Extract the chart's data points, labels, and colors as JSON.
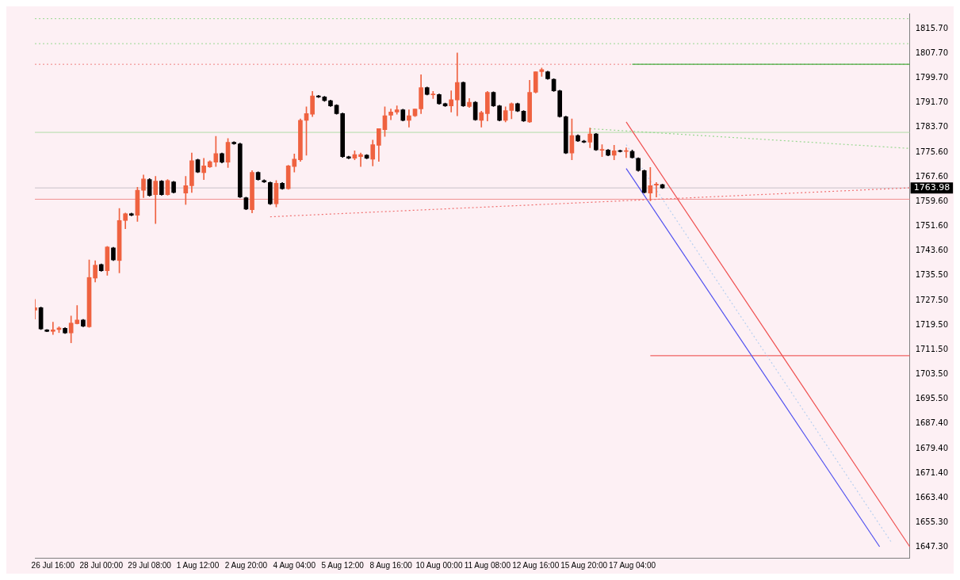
{
  "chart_data": {
    "type": "candlestick",
    "categories": [
      null,
      null,
      null,
      "26 Jul 16:00",
      null,
      null,
      null,
      null,
      null,
      null,
      null,
      "28 Jul 00:00",
      null,
      null,
      null,
      null,
      null,
      null,
      null,
      "29 Jul 08:00",
      null,
      null,
      null,
      null,
      null,
      null,
      null,
      "1 Aug 12:00",
      null,
      null,
      null,
      null,
      null,
      null,
      null,
      "2 Aug 20:00",
      null,
      null,
      null,
      null,
      null,
      null,
      null,
      "4 Aug 04:00",
      null,
      null,
      null,
      null,
      null,
      null,
      null,
      "5 Aug 12:00",
      null,
      null,
      null,
      null,
      null,
      null,
      null,
      "8 Aug 16:00",
      null,
      null,
      null,
      null,
      null,
      null,
      null,
      "10 Aug 00:00",
      null,
      null,
      null,
      null,
      null,
      null,
      null,
      "11 Aug 08:00",
      null,
      null,
      null,
      null,
      null,
      null,
      null,
      "12 Aug 16:00",
      null,
      null,
      null,
      null,
      null,
      null,
      null,
      "15 Aug 20:00",
      null,
      null,
      null,
      null,
      null,
      null,
      null,
      "17 Aug 04:00",
      null,
      null,
      null,
      null,
      null,
      null,
      null,
      null,
      null,
      null,
      null,
      null,
      null,
      null,
      null,
      null,
      null,
      null,
      null,
      null,
      null,
      null,
      null,
      null,
      null,
      null,
      null,
      null,
      null,
      null,
      null,
      null,
      null,
      null,
      null,
      null,
      null,
      null,
      null,
      null,
      null,
      null,
      null,
      null,
      null,
      null
    ],
    "ohlc": [
      [
        1724.3,
        1727.8,
        1721.4,
        1725.1
      ],
      [
        1725.1,
        1725.3,
        1718.0,
        1718.2
      ],
      [
        1717.9,
        1718.0,
        1717.3,
        1717.4
      ],
      [
        1717.4,
        1720.4,
        1716.4,
        1717.9
      ],
      [
        1718.0,
        1718.9,
        1717.0,
        1718.5
      ],
      [
        1718.4,
        1718.6,
        1716.7,
        1716.9
      ],
      [
        1716.9,
        1722.4,
        1713.7,
        1720.1
      ],
      [
        1719.9,
        1725.8,
        1719.8,
        1721.1
      ],
      [
        1721.1,
        1721.3,
        1718.9,
        1719.1
      ],
      [
        1718.9,
        1740.6,
        1718.7,
        1734.9
      ],
      [
        1734.7,
        1740.3,
        1733.4,
        1738.9
      ],
      [
        1739.1,
        1739.3,
        1736.9,
        1737.1
      ],
      [
        1737.1,
        1745.0,
        1735.6,
        1744.8
      ],
      [
        1744.5,
        1744.7,
        1740.4,
        1740.6
      ],
      [
        1740.4,
        1757.3,
        1736.4,
        1753.4
      ],
      [
        1753.4,
        1755.8,
        1750.7,
        1755.6
      ],
      [
        1755.6,
        1755.8,
        1754.9,
        1755.1
      ],
      [
        1755.1,
        1764.2,
        1753.1,
        1763.2
      ],
      [
        1763.2,
        1768.2,
        1760.8,
        1766.9
      ],
      [
        1766.7,
        1767.0,
        1761.3,
        1761.5
      ],
      [
        1761.8,
        1767.7,
        1752.4,
        1766.2
      ],
      [
        1766.2,
        1766.4,
        1761.6,
        1761.8
      ],
      [
        1761.8,
        1766.7,
        1761.6,
        1766.4
      ],
      [
        1765.9,
        1766.1,
        1762.3,
        1762.5
      ],
      null,
      [
        1762.3,
        1767.7,
        1758.6,
        1764.7
      ],
      [
        1764.7,
        1775.3,
        1762.5,
        1772.8
      ],
      [
        1773.1,
        1773.3,
        1768.9,
        1769.1
      ],
      [
        1768.9,
        1773.6,
        1766.7,
        1771.1
      ],
      [
        1770.8,
        1772.8,
        1770.6,
        1772.5
      ],
      [
        1772.3,
        1780.7,
        1770.9,
        1775.1
      ],
      [
        1775.1,
        1775.3,
        1772.1,
        1772.3
      ],
      [
        1772.3,
        1780.0,
        1770.6,
        1778.8
      ],
      [
        1778.8,
        1779.0,
        1778.1,
        1778.3
      ],
      [
        1778.3,
        1778.5,
        1760.8,
        1761.0
      ],
      [
        1760.8,
        1761.0,
        1756.9,
        1757.1
      ],
      [
        1756.9,
        1769.6,
        1755.9,
        1769.0
      ],
      [
        1769.0,
        1769.2,
        1766.5,
        1766.7
      ],
      [
        1766.4,
        1766.6,
        1765.7,
        1765.9
      ],
      [
        1765.7,
        1765.9,
        1758.6,
        1758.8
      ],
      [
        1758.8,
        1766.4,
        1757.8,
        1765.5
      ],
      [
        1765.5,
        1765.7,
        1763.5,
        1763.7
      ],
      [
        1763.7,
        1771.3,
        1763.5,
        1771.1
      ],
      [
        1770.9,
        1775.0,
        1769.1,
        1773.3
      ],
      [
        1773.1,
        1786.4,
        1772.6,
        1785.9
      ],
      [
        1785.9,
        1790.3,
        1774.6,
        1788.1
      ],
      [
        1787.9,
        1795.3,
        1787.1,
        1793.8
      ],
      [
        1793.8,
        1794.0,
        1793.3,
        1793.5
      ],
      [
        1793.5,
        1793.7,
        1792.1,
        1792.3
      ],
      [
        1792.3,
        1792.5,
        1790.4,
        1790.6
      ],
      [
        1790.8,
        1791.0,
        1787.9,
        1788.1
      ],
      [
        1788.1,
        1788.3,
        1773.9,
        1774.1
      ],
      [
        1774.1,
        1774.3,
        1773.4,
        1773.6
      ],
      [
        1773.6,
        1776.0,
        1773.1,
        1774.8
      ],
      [
        1774.1,
        1775.3,
        1770.9,
        1774.8
      ],
      [
        1774.6,
        1774.8,
        1773.4,
        1773.6
      ],
      [
        1773.3,
        1779.5,
        1771.1,
        1778.0
      ],
      [
        1777.8,
        1783.2,
        1772.6,
        1783.2
      ],
      [
        1782.9,
        1790.3,
        1780.7,
        1787.4
      ],
      [
        1787.6,
        1789.6,
        1786.1,
        1788.6
      ],
      [
        1788.6,
        1790.6,
        1787.9,
        1789.3
      ],
      [
        1789.3,
        1789.5,
        1785.7,
        1785.9
      ],
      [
        1785.9,
        1789.3,
        1783.7,
        1787.4
      ],
      [
        1787.4,
        1789.6,
        1787.1,
        1789.6
      ],
      [
        1789.6,
        1800.7,
        1788.1,
        1796.5
      ],
      [
        1796.5,
        1796.7,
        1794.1,
        1794.3
      ],
      [
        1794.2,
        1795.3,
        1793.0,
        1794.4
      ],
      [
        1794.3,
        1794.5,
        1791.1,
        1791.3
      ],
      [
        1791.3,
        1791.5,
        1790.4,
        1790.6
      ],
      [
        1790.6,
        1795.5,
        1788.6,
        1792.6
      ],
      [
        1792.5,
        1807.8,
        1787.4,
        1798.2
      ],
      [
        1798.2,
        1798.4,
        1790.4,
        1790.6
      ],
      [
        1790.4,
        1793.0,
        1790.1,
        1791.8
      ],
      [
        1791.8,
        1792.0,
        1785.9,
        1786.1
      ],
      [
        1785.9,
        1788.9,
        1783.7,
        1788.4
      ],
      [
        1788.1,
        1795.3,
        1785.7,
        1795.0
      ],
      [
        1795.0,
        1795.2,
        1790.4,
        1790.6
      ],
      [
        1790.6,
        1790.8,
        1785.7,
        1785.9
      ],
      [
        1785.9,
        1790.3,
        1785.4,
        1789.1
      ],
      [
        1789.1,
        1791.6,
        1786.4,
        1791.3
      ],
      [
        1791.3,
        1791.5,
        1788.7,
        1788.9
      ],
      [
        1788.9,
        1789.1,
        1785.5,
        1785.7
      ],
      [
        1785.4,
        1798.9,
        1785.2,
        1795.0
      ],
      [
        1795.0,
        1801.7,
        1794.8,
        1801.7
      ],
      [
        1801.7,
        1802.9,
        1800.2,
        1802.4
      ],
      [
        1801.7,
        1801.9,
        1799.2,
        1799.4
      ],
      [
        1799.2,
        1799.4,
        1795.3,
        1795.5
      ],
      [
        1795.5,
        1795.7,
        1786.9,
        1787.1
      ],
      [
        1787.1,
        1787.3,
        1775.1,
        1775.3
      ],
      [
        1775.3,
        1786.4,
        1773.1,
        1781.0
      ],
      [
        1781.0,
        1781.2,
        1779.0,
        1779.2
      ],
      [
        1779.2,
        1779.4,
        1778.6,
        1778.8
      ],
      [
        1778.8,
        1783.4,
        1777.0,
        1781.5
      ],
      [
        1781.5,
        1781.7,
        1776.1,
        1776.3
      ],
      [
        1776.2,
        1778.0,
        1774.1,
        1776.4
      ],
      [
        1776.3,
        1776.5,
        1774.4,
        1774.6
      ],
      [
        1774.6,
        1777.8,
        1773.1,
        1776.0
      ],
      [
        1776.1,
        1776.3,
        1775.6,
        1775.8
      ],
      [
        1775.8,
        1777.0,
        1773.8,
        1776.0
      ],
      [
        1775.8,
        1776.3,
        1773.6,
        1773.8
      ],
      [
        1773.6,
        1773.8,
        1769.4,
        1769.6
      ],
      [
        1769.6,
        1769.8,
        1762.3,
        1762.5
      ],
      [
        1762.3,
        1770.6,
        1759.8,
        1764.7
      ],
      [
        1764.9,
        1765.7,
        1761.0,
        1765.2
      ],
      [
        1765.0,
        1765.2,
        1763.8,
        1764.0
      ],
      null,
      null,
      null,
      null,
      null,
      null,
      null,
      null,
      null,
      null,
      null,
      null,
      null,
      null,
      null,
      null,
      null,
      null,
      null,
      null,
      null,
      null,
      null,
      null,
      null,
      null,
      null,
      null,
      null,
      null,
      null,
      null,
      null,
      null,
      null,
      null,
      null,
      null,
      null,
      null,
      null
    ],
    "colors": [
      "#ef6240",
      "#000000",
      "#000000",
      "#ef6240",
      "#ef6240",
      "#000000",
      "#ef6240",
      "#ef6240",
      "#000000",
      "#ef6240",
      "#ef6240",
      "#000000",
      "#ef6240",
      "#000000",
      "#ef6240",
      "#ef6240",
      "#000000",
      "#ef6240",
      "#ef6240",
      "#000000",
      "#ef6240",
      "#000000",
      "#ef6240",
      "#000000",
      null,
      "#ef6240",
      "#ef6240",
      "#000000",
      "#ef6240",
      "#ef6240",
      "#ef6240",
      "#000000",
      "#ef6240",
      "#000000",
      "#000000",
      "#000000",
      "#ef6240",
      "#000000",
      "#000000",
      "#000000",
      "#ef6240",
      "#000000",
      "#ef6240",
      "#ef6240",
      "#ef6240",
      "#ef6240",
      "#ef6240",
      "#000000",
      "#000000",
      "#000000",
      "#000000",
      "#000000",
      "#000000",
      "#ef6240",
      "#ef6240",
      "#000000",
      "#ef6240",
      "#ef6240",
      "#ef6240",
      "#ef6240",
      "#ef6240",
      "#000000",
      "#ef6240",
      "#ef6240",
      "#ef6240",
      "#000000",
      "#ef6240",
      "#000000",
      "#000000",
      "#ef6240",
      "#ef6240",
      "#000000",
      "#ef6240",
      "#000000",
      "#ef6240",
      "#ef6240",
      "#000000",
      "#000000",
      "#ef6240",
      "#ef6240",
      "#000000",
      "#000000",
      "#ef6240",
      "#ef6240",
      "#ef6240",
      "#000000",
      "#000000",
      "#000000",
      "#000000",
      "#ef6240",
      "#000000",
      "#000000",
      "#ef6240",
      "#000000",
      "#ef6240",
      "#000000",
      "#ef6240",
      "#000000",
      "#ef6240",
      "#000000",
      "#000000",
      "#000000",
      "#ef6240",
      "#ef6240",
      "#000000",
      null,
      null,
      null,
      null,
      null,
      null,
      null,
      null,
      null,
      null,
      null,
      null,
      null,
      null,
      null,
      null,
      null,
      null,
      null,
      null,
      null,
      null,
      null,
      null,
      null,
      null,
      null,
      null,
      null,
      null,
      null,
      null,
      null,
      null,
      null,
      null,
      null,
      null,
      null,
      null,
      null
    ],
    "series": [
      {
        "type": "line",
        "color": "#98d890",
        "line_style": "dotted",
        "values": [
          null,
          null,
          null,
          null,
          null,
          null,
          null,
          null,
          null,
          null,
          null,
          null,
          null,
          null,
          null,
          null,
          null,
          null,
          null,
          null,
          null,
          null,
          null,
          null,
          null,
          null,
          null,
          null,
          null,
          null,
          null,
          null,
          null,
          null,
          null,
          null,
          null,
          null,
          null,
          null,
          null,
          null,
          null,
          null,
          null,
          null,
          null,
          null,
          null,
          null,
          null,
          null,
          null,
          null,
          null,
          null,
          null,
          null,
          null,
          null,
          null,
          null,
          null,
          null,
          null,
          null,
          null,
          null,
          null,
          null,
          null,
          null,
          null,
          null,
          null,
          null,
          null,
          null,
          null,
          null,
          null,
          null,
          null,
          null,
          null,
          null,
          null,
          null,
          null,
          null,
          null,
          null,
          1783.2,
          null,
          null,
          null,
          null,
          null,
          null,
          null,
          null,
          null,
          null,
          null,
          null,
          null,
          null,
          null,
          null,
          null,
          null,
          null,
          null,
          null,
          null,
          null,
          null,
          null,
          null,
          null,
          null,
          null,
          null,
          null,
          null,
          null,
          null,
          null,
          null,
          null,
          null,
          null,
          null,
          null,
          null,
          null,
          null,
          null,
          null,
          null,
          null,
          null,
          null,
          null,
          null,
          1776.8
        ]
      },
      {
        "type": "line",
        "color": "#f07070",
        "line_style": "dotted",
        "values": [
          null,
          null,
          null,
          null,
          null,
          null,
          null,
          null,
          null,
          null,
          null,
          null,
          null,
          null,
          null,
          null,
          null,
          null,
          null,
          null,
          null,
          null,
          null,
          null,
          null,
          null,
          null,
          null,
          null,
          null,
          null,
          null,
          null,
          null,
          null,
          null,
          null,
          null,
          null,
          1754.6,
          null,
          null,
          null,
          null,
          null,
          null,
          null,
          null,
          null,
          null,
          null,
          null,
          null,
          null,
          null,
          null,
          null,
          null,
          null,
          null,
          null,
          null,
          null,
          null,
          null,
          null,
          null,
          null,
          null,
          null,
          null,
          null,
          null,
          null,
          null,
          null,
          null,
          null,
          null,
          null,
          null,
          null,
          null,
          null,
          null,
          null,
          null,
          null,
          null,
          null,
          null,
          null,
          null,
          null,
          null,
          null,
          null,
          null,
          null,
          null,
          null,
          null,
          null,
          null,
          null,
          null,
          null,
          null,
          null,
          null,
          null,
          null,
          null,
          null,
          null,
          null,
          null,
          null,
          null,
          null,
          null,
          null,
          null,
          null,
          null,
          null,
          null,
          null,
          null,
          null,
          null,
          null,
          null,
          null,
          null,
          null,
          null,
          null,
          null,
          null,
          null,
          null,
          null,
          null,
          null,
          1764.0
        ]
      },
      {
        "type": "line",
        "color": "#f05050",
        "line_style": "solid",
        "values": [
          null,
          null,
          null,
          null,
          null,
          null,
          null,
          null,
          null,
          null,
          null,
          null,
          null,
          null,
          null,
          null,
          null,
          null,
          null,
          null,
          null,
          null,
          null,
          null,
          null,
          null,
          null,
          null,
          null,
          null,
          null,
          null,
          null,
          null,
          null,
          null,
          null,
          null,
          null,
          null,
          null,
          null,
          null,
          null,
          null,
          null,
          null,
          null,
          null,
          null,
          null,
          null,
          null,
          null,
          null,
          null,
          null,
          null,
          null,
          null,
          null,
          null,
          null,
          null,
          null,
          null,
          null,
          null,
          null,
          null,
          null,
          null,
          null,
          null,
          null,
          null,
          null,
          null,
          null,
          null,
          null,
          null,
          null,
          null,
          null,
          null,
          null,
          null,
          null,
          null,
          null,
          null,
          null,
          null,
          null,
          null,
          null,
          null,
          1785.4,
          null,
          null,
          null,
          null,
          null,
          null,
          null,
          null,
          null,
          null,
          null,
          null,
          null,
          null,
          null,
          null,
          null,
          null,
          null,
          null,
          null,
          null,
          null,
          null,
          null,
          null,
          null,
          null,
          null,
          null,
          null,
          null,
          null,
          null,
          null,
          null,
          null,
          null,
          null,
          null,
          null,
          null,
          null,
          null,
          null,
          null,
          1647.5
        ]
      },
      {
        "type": "line",
        "color": "#5050f0",
        "line_style": "solid",
        "values": [
          null,
          null,
          null,
          null,
          null,
          null,
          null,
          null,
          null,
          null,
          null,
          null,
          null,
          null,
          null,
          null,
          null,
          null,
          null,
          null,
          null,
          null,
          null,
          null,
          null,
          null,
          null,
          null,
          null,
          null,
          null,
          null,
          null,
          null,
          null,
          null,
          null,
          null,
          null,
          null,
          null,
          null,
          null,
          null,
          null,
          null,
          null,
          null,
          null,
          null,
          null,
          null,
          null,
          null,
          null,
          null,
          null,
          null,
          null,
          null,
          null,
          null,
          null,
          null,
          null,
          null,
          null,
          null,
          null,
          null,
          null,
          null,
          null,
          null,
          null,
          null,
          null,
          null,
          null,
          null,
          null,
          null,
          null,
          null,
          null,
          null,
          null,
          null,
          null,
          null,
          null,
          null,
          null,
          null,
          null,
          null,
          null,
          null,
          1770.3,
          null,
          null,
          null,
          null,
          null,
          null,
          null,
          null,
          null,
          null,
          null,
          null,
          null,
          null,
          null,
          null,
          null,
          null,
          null,
          null,
          null,
          null,
          null,
          null,
          null,
          null,
          null,
          null,
          null,
          null,
          null,
          null,
          null,
          null,
          null,
          null,
          null,
          null,
          null,
          null,
          null,
          1647.5,
          null,
          null,
          null,
          null,
          null
        ]
      },
      {
        "type": "line",
        "color": "#b8d0f0",
        "line_style": "dotted",
        "values": [
          null,
          null,
          null,
          null,
          null,
          null,
          null,
          null,
          null,
          null,
          null,
          null,
          null,
          null,
          null,
          null,
          null,
          null,
          null,
          null,
          null,
          null,
          null,
          null,
          null,
          null,
          null,
          null,
          null,
          null,
          null,
          null,
          null,
          null,
          null,
          null,
          null,
          null,
          null,
          null,
          null,
          null,
          null,
          null,
          null,
          null,
          null,
          null,
          null,
          null,
          null,
          null,
          null,
          null,
          null,
          null,
          null,
          null,
          null,
          null,
          null,
          null,
          null,
          null,
          null,
          null,
          null,
          null,
          null,
          null,
          null,
          null,
          null,
          null,
          null,
          null,
          null,
          null,
          null,
          null,
          null,
          null,
          null,
          null,
          null,
          null,
          null,
          null,
          null,
          null,
          null,
          null,
          null,
          null,
          null,
          null,
          null,
          null,
          1778.0,
          null,
          null,
          null,
          null,
          null,
          null,
          null,
          null,
          null,
          null,
          null,
          null,
          null,
          null,
          null,
          null,
          null,
          null,
          null,
          null,
          null,
          null,
          null,
          null,
          null,
          null,
          null,
          null,
          null,
          null,
          null,
          null,
          null,
          null,
          null,
          null,
          null,
          null,
          null,
          null,
          null,
          null,
          null,
          1648.8,
          null,
          null,
          null
        ]
      },
      {
        "type": "line",
        "color": "#40b040",
        "line_style": "solid",
        "values": [
          null,
          null,
          null,
          null,
          null,
          null,
          null,
          null,
          null,
          null,
          null,
          null,
          null,
          null,
          null,
          null,
          null,
          null,
          null,
          null,
          null,
          null,
          null,
          null,
          null,
          null,
          null,
          null,
          null,
          null,
          null,
          null,
          null,
          null,
          null,
          null,
          null,
          null,
          null,
          null,
          null,
          null,
          null,
          null,
          null,
          null,
          null,
          null,
          null,
          null,
          null,
          null,
          null,
          null,
          null,
          null,
          null,
          null,
          null,
          null,
          null,
          null,
          null,
          null,
          null,
          null,
          null,
          null,
          null,
          null,
          null,
          null,
          null,
          null,
          null,
          null,
          null,
          null,
          null,
          null,
          null,
          null,
          null,
          null,
          null,
          null,
          null,
          null,
          null,
          null,
          null,
          null,
          null,
          null,
          null,
          null,
          null,
          null,
          null,
          1804.1,
          null,
          null,
          null,
          null,
          null,
          null,
          null,
          null,
          null,
          null,
          null,
          null,
          null,
          null,
          null,
          null,
          null,
          null,
          null,
          null,
          null,
          null,
          null,
          null,
          null,
          null,
          null,
          null,
          null,
          null,
          null,
          null,
          null,
          null,
          null,
          null,
          null,
          null,
          null,
          null,
          null,
          null,
          null,
          null,
          null,
          1804.1
        ]
      },
      {
        "type": "line",
        "color": "#f06060",
        "line_style": "solid",
        "values": [
          null,
          null,
          null,
          null,
          null,
          null,
          null,
          null,
          null,
          null,
          null,
          null,
          null,
          null,
          null,
          null,
          null,
          null,
          null,
          null,
          null,
          null,
          null,
          null,
          null,
          null,
          null,
          null,
          null,
          null,
          null,
          null,
          null,
          null,
          null,
          null,
          null,
          null,
          null,
          null,
          null,
          null,
          null,
          null,
          null,
          null,
          null,
          null,
          null,
          null,
          null,
          null,
          null,
          null,
          null,
          null,
          null,
          null,
          null,
          null,
          null,
          null,
          null,
          null,
          null,
          null,
          null,
          null,
          null,
          null,
          null,
          null,
          null,
          null,
          null,
          null,
          null,
          null,
          null,
          null,
          null,
          null,
          null,
          null,
          null,
          null,
          null,
          null,
          null,
          null,
          null,
          null,
          null,
          null,
          null,
          null,
          null,
          null,
          null,
          null,
          null,
          null,
          1709.5,
          null,
          null,
          null,
          null,
          null,
          null,
          null,
          null,
          null,
          null,
          null,
          null,
          null,
          null,
          null,
          null,
          null,
          null,
          null,
          null,
          null,
          null,
          null,
          null,
          null,
          null,
          null,
          null,
          null,
          null,
          null,
          null,
          null,
          null,
          null,
          null,
          null,
          null,
          null,
          null,
          null,
          null,
          1709.5
        ]
      }
    ],
    "ref_lines": [
      {
        "axis": "y",
        "value": 1818.9,
        "color": "#98d890",
        "line_style": "dotted"
      },
      {
        "axis": "y",
        "value": 1810.8,
        "color": "#98d890",
        "line_style": "dotted"
      },
      {
        "axis": "y",
        "value": 1804.1,
        "color": "#f08080",
        "line_style": "dotted"
      },
      {
        "axis": "y",
        "value": 1782.0,
        "color": "#b0dca8",
        "line_style": "solid"
      },
      {
        "axis": "y",
        "value": 1763.98,
        "label": "1763.98",
        "color": "#c8c0c8",
        "line_style": "solid"
      },
      {
        "axis": "y",
        "value": 1760.3,
        "color": "#f09090",
        "line_style": "solid"
      }
    ],
    "ylim": [
      1643.9,
      1820.6
    ],
    "yticks": [
      {
        "value": 1815.7,
        "label": "1815.70"
      },
      {
        "value": 1807.7,
        "label": "1807.70"
      },
      {
        "value": 1799.7,
        "label": "1799.70"
      },
      {
        "value": 1791.7,
        "label": "1791.70"
      },
      {
        "value": 1783.7,
        "label": "1783.70"
      },
      {
        "value": 1775.6,
        "label": "1775.60"
      },
      {
        "value": 1767.6,
        "label": "1767.60"
      },
      {
        "value": 1759.6,
        "label": "1759.60"
      },
      {
        "value": 1751.6,
        "label": "1751.60"
      },
      {
        "value": 1743.6,
        "label": "1743.60"
      },
      {
        "value": 1735.5,
        "label": "1735.50"
      },
      {
        "value": 1727.5,
        "label": "1727.50"
      },
      {
        "value": 1719.5,
        "label": "1719.50"
      },
      {
        "value": 1711.5,
        "label": "1711.50"
      },
      {
        "value": 1703.5,
        "label": "1703.50"
      },
      {
        "value": 1695.5,
        "label": "1695.50"
      },
      {
        "value": 1687.4,
        "label": "1687.40"
      },
      {
        "value": 1679.4,
        "label": "1679.40"
      },
      {
        "value": 1671.4,
        "label": "1671.40"
      },
      {
        "value": 1663.4,
        "label": "1663.40"
      },
      {
        "value": 1655.3,
        "label": "1655.30"
      },
      {
        "value": 1647.3,
        "label": "1647.30"
      }
    ]
  }
}
